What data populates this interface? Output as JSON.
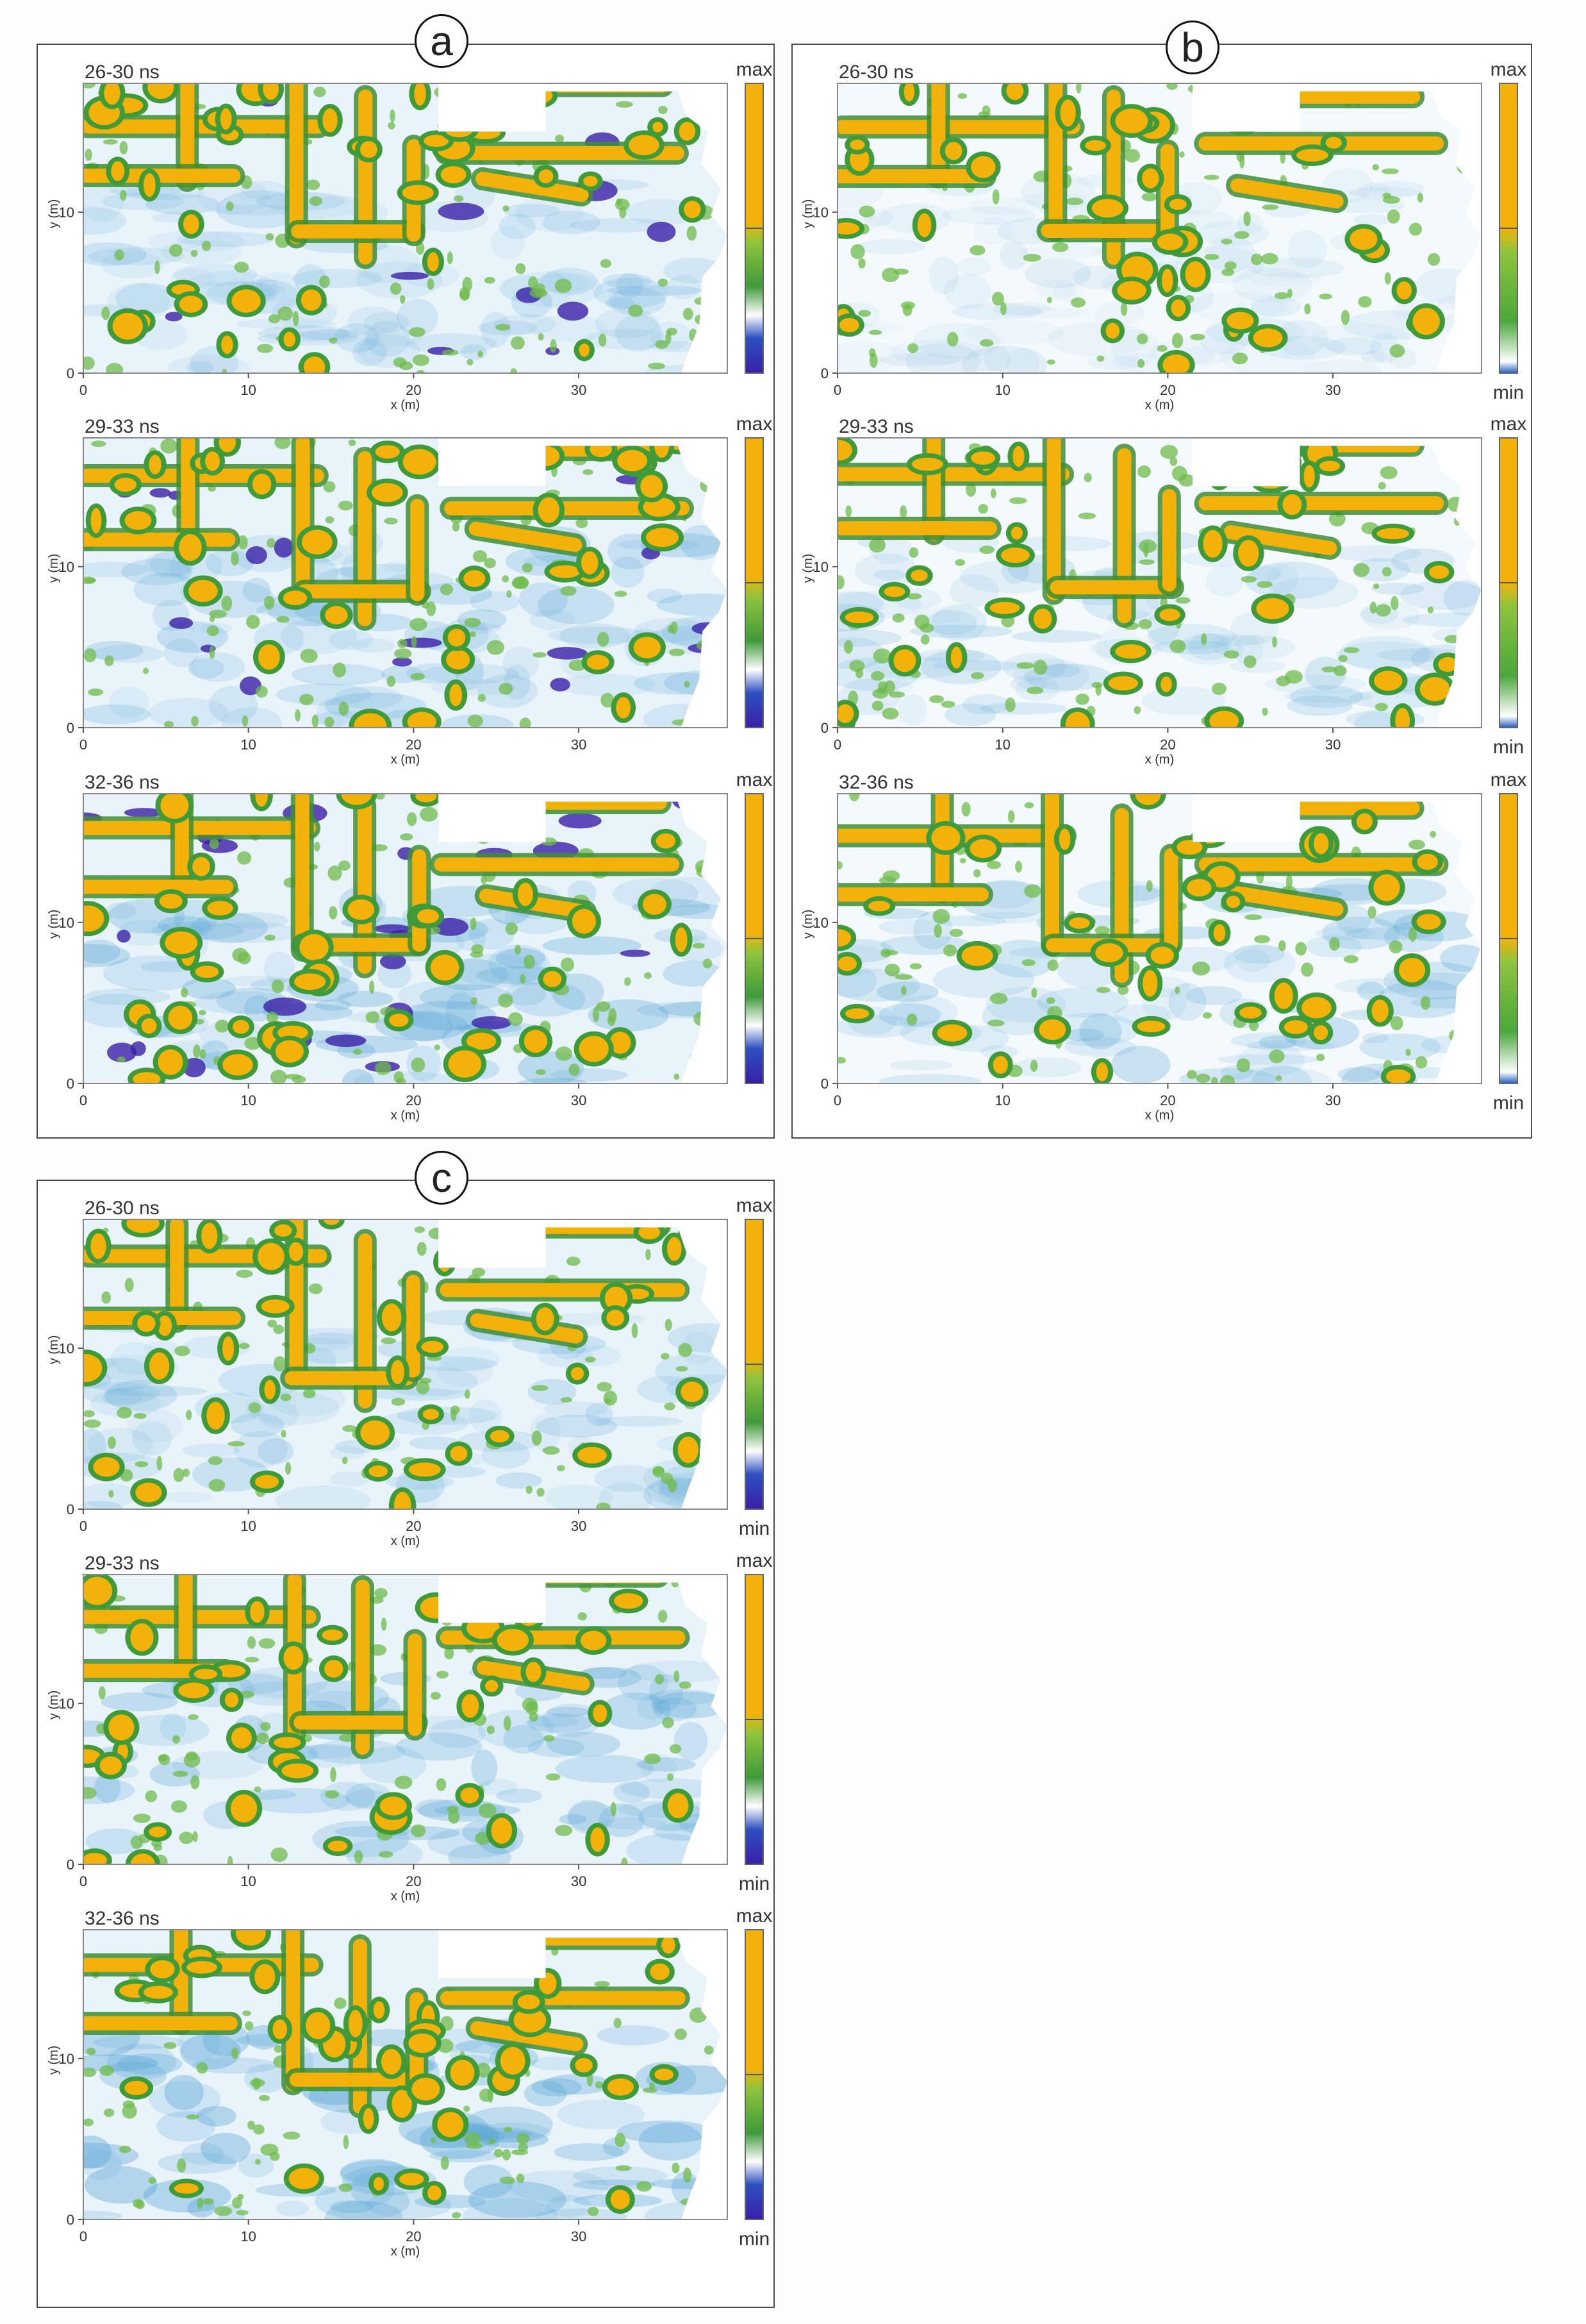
{
  "figure": {
    "panels": [
      {
        "label": "a",
        "colorbar": "blue-white-green-orange",
        "maps": [
          {
            "label": "26-30 ns",
            "max_label": "max",
            "min_label": ""
          },
          {
            "label": "29-33 ns",
            "max_label": "max",
            "min_label": ""
          },
          {
            "label": "32-36 ns",
            "max_label": "max",
            "min_label": ""
          }
        ]
      },
      {
        "label": "b",
        "colorbar": "white-green-orange",
        "maps": [
          {
            "label": "26-30 ns",
            "max_label": "max",
            "min_label": "min"
          },
          {
            "label": "29-33 ns",
            "max_label": "max",
            "min_label": "min"
          },
          {
            "label": "32-36 ns",
            "max_label": "max",
            "min_label": "min"
          }
        ]
      },
      {
        "label": "c",
        "colorbar": "blue-white-green-orange",
        "maps": [
          {
            "label": "26-30 ns",
            "max_label": "max",
            "min_label": "min"
          },
          {
            "label": "29-33 ns",
            "max_label": "max",
            "min_label": "min"
          },
          {
            "label": "32-36 ns",
            "max_label": "max",
            "min_label": "min"
          }
        ]
      }
    ]
  },
  "chart_data": {
    "type": "heatmap",
    "xlabel": "x (m)",
    "ylabel": "y (m)",
    "xlim": [
      0,
      39
    ],
    "ylim": [
      0,
      18
    ],
    "x_ticks": [
      "0",
      "10",
      "20",
      "30"
    ],
    "y_ticks": [
      "0",
      "10"
    ],
    "colors": {
      "high": "#f2b20a",
      "mid": "#4da83a",
      "low": "#e9f4fb",
      "min": "#1c3fb0",
      "deep": "#3a1fa8"
    }
  }
}
